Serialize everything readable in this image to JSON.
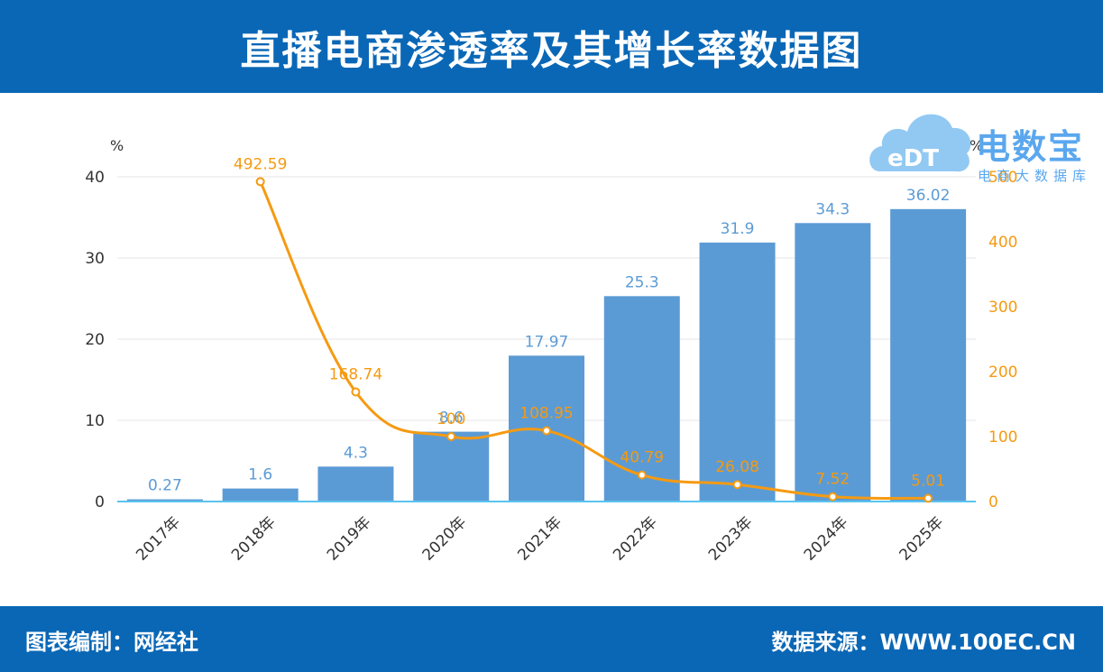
{
  "header": {
    "title": "直播电商渗透率及其增长率数据图"
  },
  "footer": {
    "compiler": "图表编制：网经社",
    "source": "数据来源：WWW.100EC.CN"
  },
  "logo": {
    "brand": "电数宝",
    "subtitle": "电商大数据库",
    "mark_text": "eDT"
  },
  "colors": {
    "header_bg": "#0a67b6",
    "bar": "#5b9bd5",
    "line": "#f59a12",
    "axis_baseline": "#5bc3f0"
  },
  "chart_data": {
    "type": "bar",
    "title": "",
    "categories": [
      "2017年",
      "2018年",
      "2019年",
      "2020年",
      "2021年",
      "2022年",
      "2023年",
      "2024年",
      "2025年"
    ],
    "series": [
      {
        "values": [
          0.27,
          1.6,
          4.3,
          8.6,
          17.97,
          25.3,
          31.9,
          34.3,
          36.02
        ],
        "axis": "left",
        "type": "bar"
      },
      {
        "values": [
          null,
          492.59,
          168.74,
          100,
          108.95,
          40.79,
          26.08,
          7.52,
          5.01
        ],
        "axis": "right",
        "type": "line"
      }
    ],
    "bar_labels": [
      "0.27",
      "1.6",
      "4.3",
      "8.6",
      "17.97",
      "25.3",
      "31.9",
      "34.3",
      "36.02"
    ],
    "line_labels": [
      "",
      "492.59",
      "168.74",
      "100",
      "108.95",
      "40.79",
      "26.08",
      "7.52",
      "5.01"
    ],
    "left_axis": {
      "unit": "%",
      "ylim": [
        0,
        40
      ],
      "ticks": [
        "0",
        "10",
        "20",
        "30",
        "40"
      ]
    },
    "right_axis": {
      "unit": "%",
      "ylim": [
        0,
        500
      ],
      "ticks": [
        "0",
        "100",
        "200",
        "300",
        "400",
        "500"
      ]
    },
    "grid": true
  }
}
